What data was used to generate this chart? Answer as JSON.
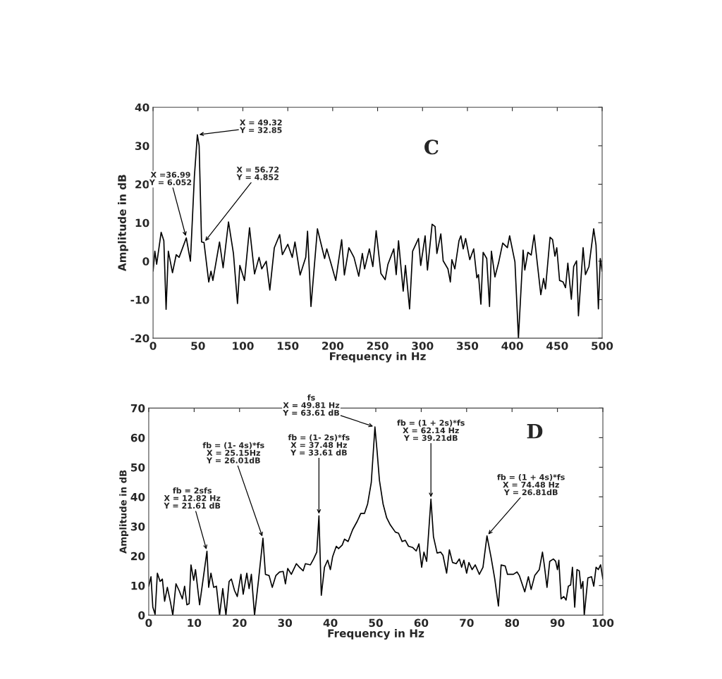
{
  "chart_data": [
    {
      "type": "line",
      "title": "C",
      "xlabel": "Frequency in Hz",
      "ylabel": "Amplitude in dB",
      "xlim": [
        0,
        500
      ],
      "ylim": [
        -20,
        40
      ],
      "xticks": [
        0,
        50,
        100,
        150,
        200,
        250,
        300,
        350,
        400,
        450,
        500
      ],
      "yticks": [
        -20,
        -10,
        0,
        10,
        20,
        30,
        40
      ],
      "grid": false,
      "legend": false,
      "series": [
        {
          "color": "#000000",
          "x": [
            0,
            2,
            4,
            9,
            12,
            14.5,
            17,
            21.6,
            25.8,
            29,
            36.99,
            41.6,
            46,
            49.32,
            51.3,
            54,
            56.72,
            62,
            64.5,
            66.6,
            74,
            78,
            84,
            89.5,
            94,
            96.6,
            101.8,
            107.4,
            113,
            118,
            121,
            126,
            130,
            135,
            141,
            144,
            150,
            155,
            158,
            163.7,
            170,
            172,
            175.8,
            183,
            191,
            193.4,
            198.7,
            203.4,
            210,
            213,
            218,
            223.7,
            229,
            233,
            235.5,
            240.8,
            244.7,
            248.4,
            253.7,
            258.4,
            261.5,
            268,
            270.7,
            273.3,
            278.5,
            281,
            285.6,
            289,
            295.5,
            298,
            302.9,
            305.5,
            310.7,
            314,
            316,
            320.4,
            323,
            328.3,
            331,
            332.7,
            336,
            340.6,
            342.7,
            345.3,
            348,
            352.6,
            357,
            360.5,
            362.3,
            365,
            367.5,
            371.5,
            374.6,
            376.7,
            380.6,
            384.6,
            389.3,
            394.5,
            397,
            402.9,
            406.8,
            412,
            413.9,
            417.3,
            421,
            424.3,
            431.7,
            434.8,
            436.9,
            442,
            444.8,
            447.4,
            449.5,
            452.6,
            456.5,
            459.2,
            461.8,
            465.7,
            468.3,
            471.5,
            473.6,
            478.8,
            481.4,
            485.3,
            490.6,
            493.2,
            495.8,
            497.9,
            500
          ],
          "values": [
            -2.6,
            2.6,
            -0.8,
            7.5,
            5.3,
            -12.5,
            2.6,
            -3,
            1.7,
            1,
            6.052,
            0,
            22,
            32.85,
            30,
            5,
            4.852,
            -5.4,
            -2.6,
            -5,
            5,
            -1.7,
            10.2,
            2,
            -11,
            -1.1,
            -5,
            8.7,
            -3.3,
            1,
            -2,
            0,
            -7.5,
            3.5,
            6.9,
            1.7,
            4.4,
            1,
            5,
            -3.6,
            1,
            7.8,
            -11.8,
            8.4,
            0.7,
            3.2,
            -1.1,
            -5,
            5.6,
            -3.6,
            3.5,
            1,
            -3.9,
            2,
            -2,
            3.2,
            -1.4,
            7.9,
            -3.2,
            -4.8,
            -0.8,
            3.2,
            -3.5,
            5.3,
            -7.8,
            -1.1,
            -12.4,
            2.6,
            5.9,
            -1.1,
            6.6,
            -2.3,
            9.6,
            9,
            2,
            7.1,
            0.1,
            -2,
            -5.4,
            0.4,
            -2,
            5.3,
            6.6,
            3.2,
            5.9,
            0.4,
            3.2,
            -4.3,
            -3.5,
            -11.2,
            2.3,
            0.7,
            -11.8,
            2.6,
            -4.1,
            -0.5,
            4.7,
            3.5,
            6.6,
            -0.2,
            -20,
            2.9,
            -2.3,
            2.3,
            1.6,
            6.8,
            -8.7,
            -4.5,
            -7.2,
            6.2,
            5.6,
            1.3,
            3.5,
            -5,
            -5.4,
            -6.9,
            -0.5,
            -9.9,
            -1.4,
            0.1,
            -14.2,
            3.5,
            -3.5,
            -1.4,
            8.4,
            4.1,
            -12.4,
            0.7,
            -2.6
          ]
        }
      ],
      "annotations": [
        {
          "text": "X = 49.32\nY = 32.85",
          "x": 49.32,
          "y": 32.85
        },
        {
          "text": "X =36.99\nY = 6.052",
          "x": 36.99,
          "y": 6.052
        },
        {
          "text": "X = 56.72\nY = 4.852",
          "x": 56.72,
          "y": 4.852
        }
      ]
    },
    {
      "type": "line",
      "title": "D",
      "xlabel": "Frequency in Hz",
      "ylabel": "Amplitude in dB",
      "xlim": [
        0,
        100
      ],
      "ylim": [
        0,
        70
      ],
      "xticks": [
        0,
        10,
        20,
        30,
        40,
        50,
        60,
        70,
        80,
        90,
        100
      ],
      "yticks": [
        0,
        10,
        20,
        30,
        40,
        50,
        60,
        70
      ],
      "grid": false,
      "legend": false,
      "series": [
        {
          "color": "#000000",
          "x": [
            0,
            0.5,
            0.9,
            1.4,
            1.9,
            2.5,
            3,
            3.5,
            4.1,
            4.8,
            5.3,
            6,
            6.7,
            7.4,
            7.9,
            8.4,
            8.9,
            9.3,
            9.9,
            10.3,
            11.2,
            12.82,
            13.2,
            13.7,
            14.3,
            14.9,
            15.6,
            16.3,
            17,
            17.7,
            18.2,
            18.9,
            19.5,
            20.3,
            20.8,
            21.6,
            22.1,
            22.6,
            23.3,
            24.2,
            25.15,
            25.7,
            26.5,
            27.2,
            28,
            28.8,
            29.6,
            30.1,
            30.6,
            31.4,
            32.5,
            33.2,
            34,
            34.5,
            35.6,
            36.3,
            37,
            37.48,
            38,
            38.7,
            39.4,
            40,
            40.5,
            41.3,
            41.8,
            42.6,
            43.1,
            43.9,
            44.9,
            45.9,
            46.7,
            47.5,
            48.2,
            49,
            49.81,
            50.3,
            50.8,
            51.6,
            52.4,
            53.2,
            54.3,
            55,
            55.8,
            56.5,
            57.2,
            58.1,
            58.9,
            59.5,
            60.1,
            60.6,
            61.2,
            62.14,
            62.7,
            63.5,
            64.3,
            64.8,
            65.6,
            66.2,
            66.9,
            67.7,
            68.4,
            68.9,
            69.4,
            70,
            70.5,
            71.2,
            71.9,
            72.8,
            73.6,
            74.48,
            75.4,
            76.2,
            77,
            77.6,
            78.5,
            79,
            80.3,
            81.1,
            81.6,
            82.8,
            83.6,
            84.2,
            85,
            86,
            86.7,
            87.1,
            87.7,
            88.3,
            89.1,
            89.6,
            90,
            90.3,
            90.8,
            91.4,
            91.9,
            92.4,
            92.9,
            93.3,
            93.8,
            94.3,
            94.8,
            95.2,
            95.6,
            95.9,
            96.7,
            97.5,
            98,
            98.5,
            99,
            99.5,
            100
          ],
          "values": [
            9.8,
            13,
            2.7,
            0.3,
            14.2,
            11.4,
            12.2,
            4.7,
            9.4,
            4.3,
            0,
            10.6,
            8.3,
            5.5,
            9.8,
            3.5,
            3.9,
            17,
            11.8,
            15.4,
            3.5,
            21.61,
            9.4,
            14.2,
            9.4,
            9.8,
            0,
            9,
            0,
            11.4,
            12.2,
            8.3,
            6.3,
            13.8,
            7.1,
            14.2,
            9,
            13.8,
            0,
            12.2,
            26.01,
            13.8,
            13.4,
            9.4,
            13.4,
            14.6,
            14.8,
            10.6,
            15.8,
            13.8,
            17.4,
            16.2,
            15,
            17.4,
            17,
            19,
            21.3,
            33.61,
            6.7,
            16.2,
            18.6,
            15.4,
            19.8,
            23.3,
            22.5,
            23.7,
            25.7,
            24.9,
            28.9,
            31.7,
            34.4,
            34.4,
            37.6,
            44.8,
            63.61,
            55.1,
            45.6,
            37.6,
            32.9,
            30.5,
            28.1,
            27.7,
            24.9,
            25.3,
            23.3,
            22.9,
            21.7,
            24.1,
            16.2,
            21.3,
            18.2,
            39.21,
            26.5,
            21,
            21.3,
            20.2,
            14.2,
            22.1,
            17.8,
            17.4,
            19,
            16.2,
            18.6,
            14.2,
            17.8,
            15.4,
            17,
            13.8,
            16.2,
            26.81,
            19.4,
            12.2,
            3.1,
            17,
            16.6,
            13.8,
            13.8,
            14.6,
            13.4,
            7.9,
            13,
            8.7,
            13.4,
            15.4,
            21.3,
            17,
            9.4,
            18.2,
            19,
            18.2,
            15.4,
            18.6,
            5.5,
            6.3,
            5.1,
            9.8,
            10.2,
            16.2,
            2.7,
            15.4,
            15,
            9,
            11.4,
            0,
            12.6,
            13,
            9.8,
            16.2,
            15.4,
            17,
            12.2
          ]
        }
      ],
      "annotations": [
        {
          "text": "fs\nX = 49.81 Hz\nY = 63.61 dB",
          "x": 49.81,
          "y": 63.61
        },
        {
          "text": "fb = 2sfs\nX = 12.82 Hz\nY = 21.61 dB",
          "x": 12.82,
          "y": 21.61
        },
        {
          "text": "fb = (1- 4s)*fs\nX = 25.15Hz\nY = 26.01dB",
          "x": 25.15,
          "y": 26.01
        },
        {
          "text": "fb = (1- 2s)*fs\nX = 37.48 Hz\nY = 33.61 dB",
          "x": 37.48,
          "y": 33.61
        },
        {
          "text": "fb = (1 + 2s)*fs\nX = 62.14 Hz\nY = 39.21dB",
          "x": 62.14,
          "y": 39.21
        },
        {
          "text": "fb = (1 + 4s)*fs\nX = 74.48 Hz\nY = 26.81dB",
          "x": 74.48,
          "y": 26.81
        }
      ]
    }
  ]
}
